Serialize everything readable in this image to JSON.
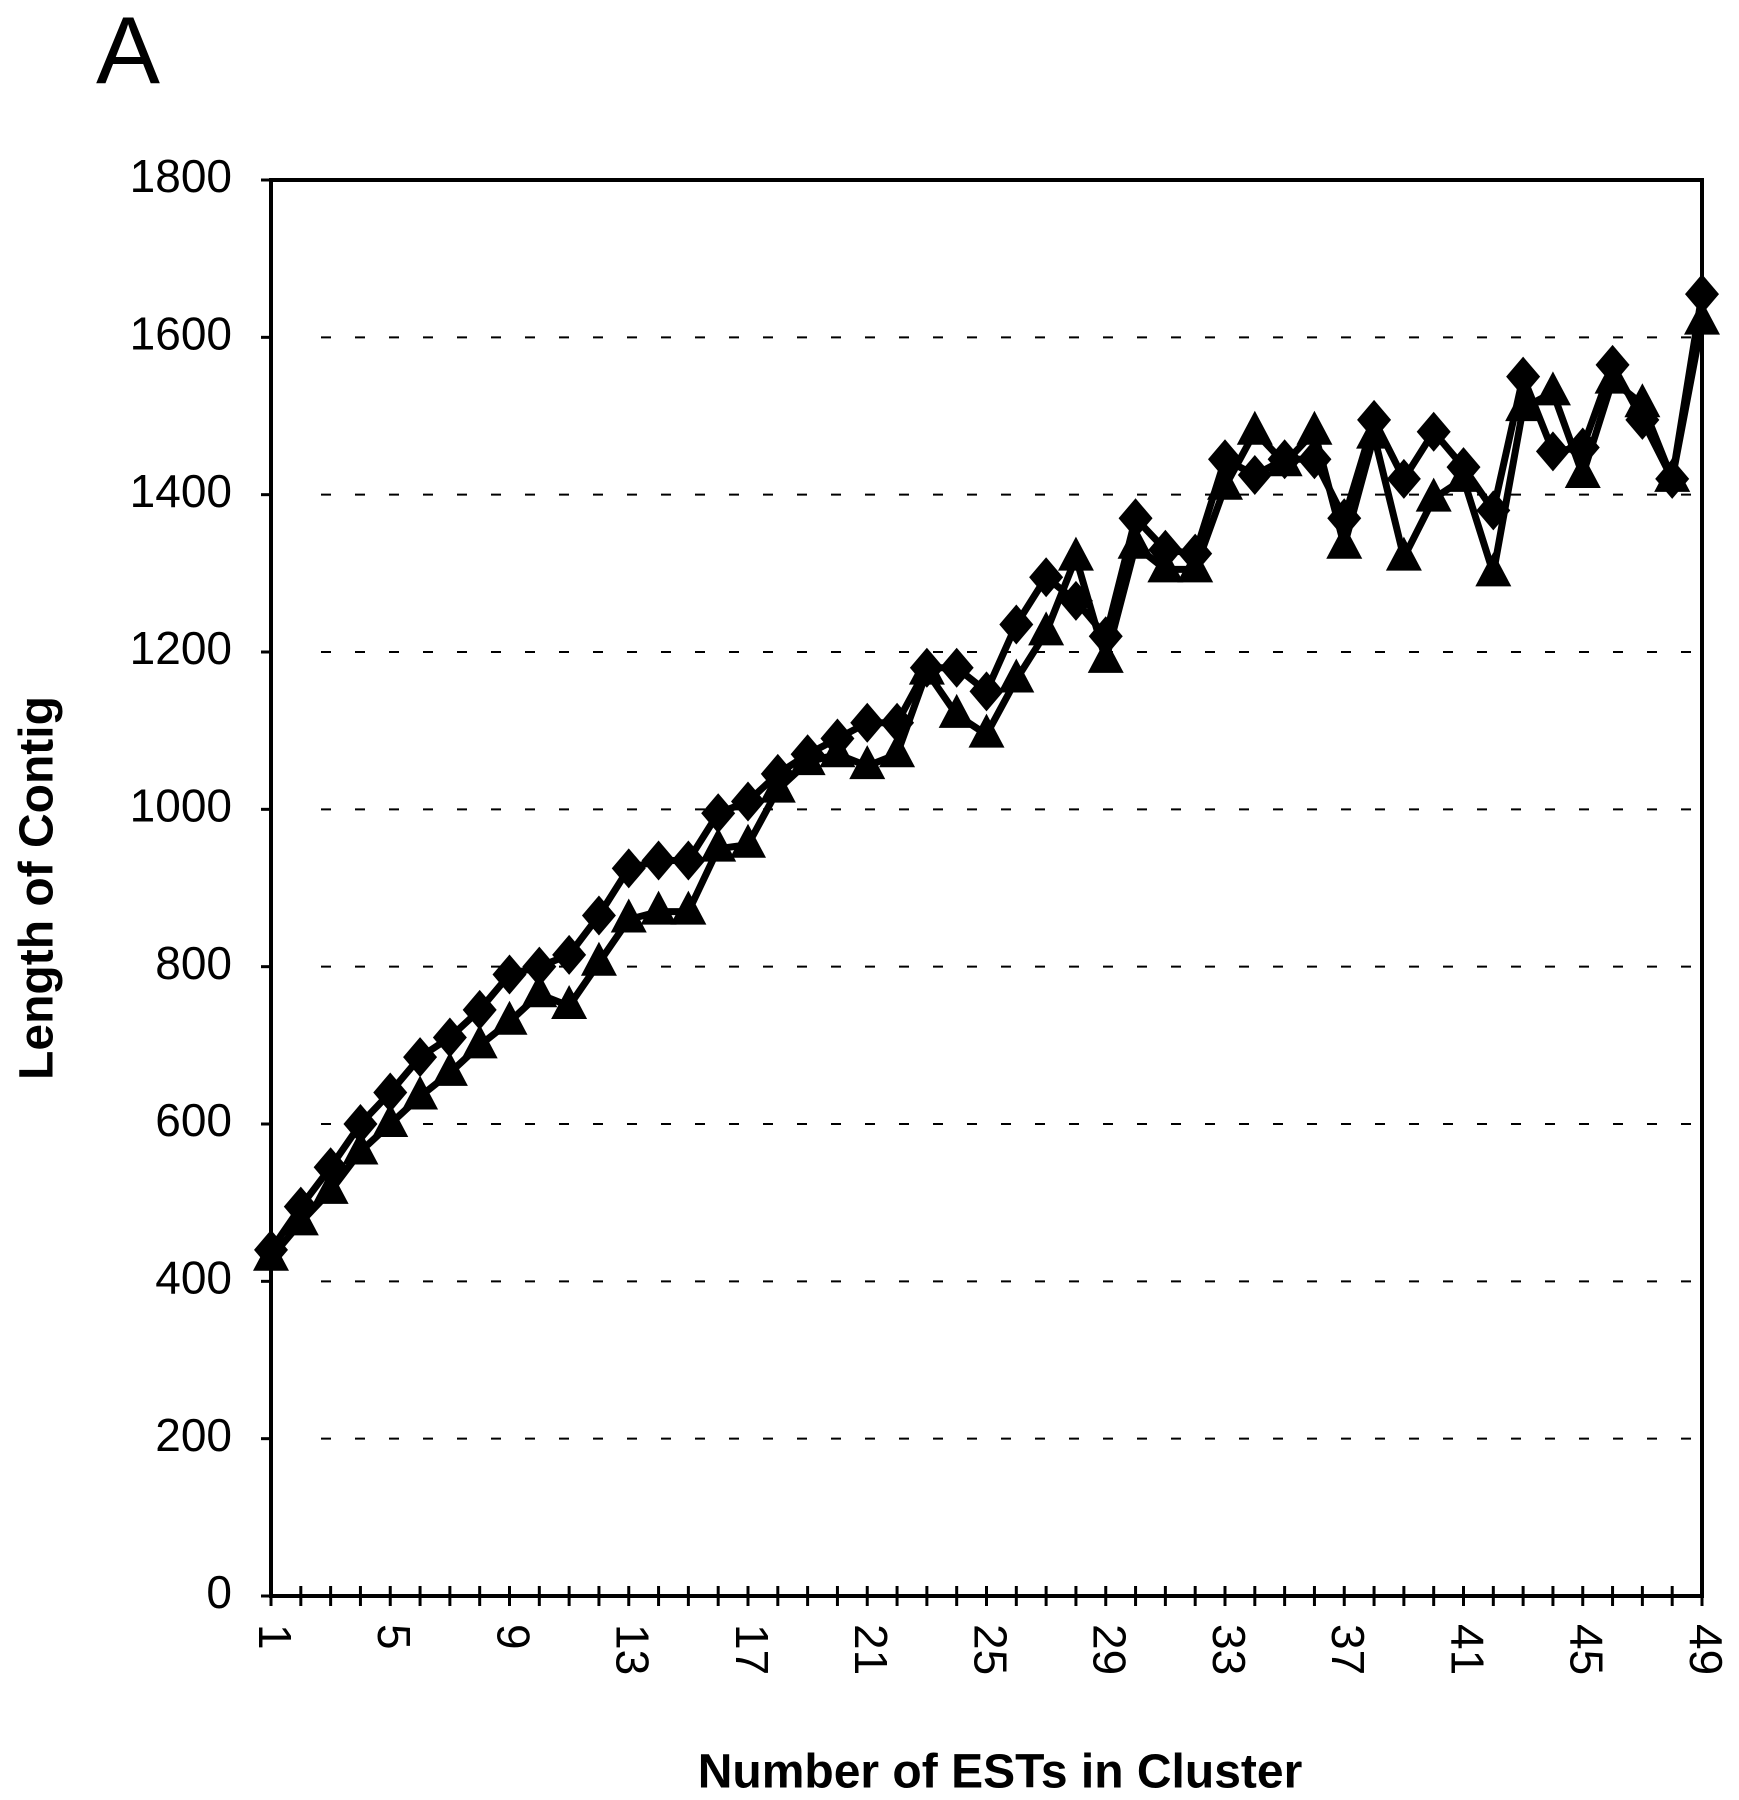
{
  "chart_data": {
    "type": "line",
    "panel_label": "A",
    "xlabel": "Number of ESTs in Cluster",
    "ylabel": "Length of Contig",
    "x": [
      1,
      2,
      3,
      4,
      5,
      6,
      7,
      8,
      9,
      10,
      11,
      12,
      13,
      14,
      15,
      16,
      17,
      18,
      19,
      20,
      21,
      22,
      23,
      24,
      25,
      26,
      27,
      28,
      29,
      30,
      31,
      32,
      33,
      34,
      35,
      36,
      37,
      38,
      39,
      40,
      41,
      42,
      43,
      44,
      45,
      46,
      47,
      48,
      49
    ],
    "xlim": [
      1,
      49
    ],
    "xticks": [
      1,
      5,
      9,
      13,
      17,
      21,
      25,
      29,
      33,
      37,
      41,
      45,
      49
    ],
    "ylim": [
      0,
      1800
    ],
    "yticks": [
      0,
      200,
      400,
      600,
      800,
      1000,
      1200,
      1400,
      1600,
      1800
    ],
    "grid": true,
    "series": [
      {
        "color": "#000000",
        "marker": "diamond",
        "values": [
          440,
          495,
          545,
          600,
          640,
          685,
          710,
          745,
          790,
          800,
          815,
          865,
          925,
          935,
          935,
          995,
          1010,
          1045,
          1070,
          1090,
          1110,
          1110,
          1180,
          1180,
          1150,
          1235,
          1295,
          1265,
          1220,
          1370,
          1330,
          1325,
          1445,
          1425,
          1445,
          1445,
          1370,
          1495,
          1420,
          1480,
          1435,
          1380,
          1550,
          1455,
          1460,
          1565,
          1495,
          1420,
          1655
        ]
      },
      {
        "color": "#000000",
        "marker": "triangle",
        "values": [
          430,
          475,
          515,
          565,
          600,
          635,
          665,
          700,
          730,
          765,
          750,
          805,
          860,
          870,
          870,
          950,
          955,
          1025,
          1060,
          1070,
          1055,
          1070,
          1175,
          1120,
          1095,
          1165,
          1225,
          1320,
          1190,
          1335,
          1305,
          1305,
          1410,
          1480,
          1440,
          1480,
          1335,
          1475,
          1320,
          1395,
          1420,
          1300,
          1510,
          1530,
          1425,
          1545,
          1515,
          1420,
          1620
        ]
      }
    ]
  }
}
